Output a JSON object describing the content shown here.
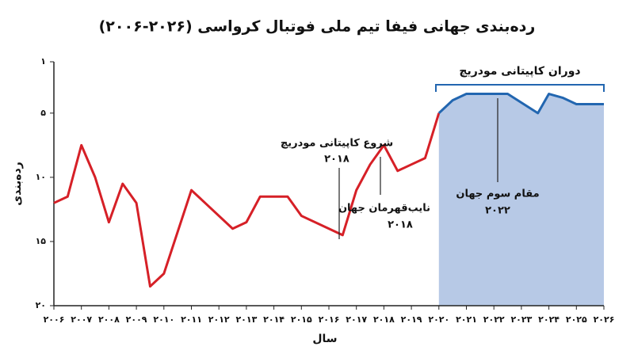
{
  "chart_data": {
    "type": "line",
    "title": "رده‌بندی جهانی فیفا تیم ملی فوتبال کرواسی (۲۰۲۶-۲۰۰۶)",
    "x_label": "سال",
    "y_label": "رده‌بندی",
    "y_inverted": true,
    "xlim": [
      2006,
      2026
    ],
    "xticks": [
      {
        "value": 2006,
        "label": "۲۰۰۶"
      },
      {
        "value": 2007,
        "label": "۲۰۰۷"
      },
      {
        "value": 2008,
        "label": "۲۰۰۸"
      },
      {
        "value": 2009,
        "label": "۲۰۰۹"
      },
      {
        "value": 2010,
        "label": "۲۰۱۰"
      },
      {
        "value": 2011,
        "label": "۲۰۱۱"
      },
      {
        "value": 2012,
        "label": "۲۰۱۲"
      },
      {
        "value": 2013,
        "label": "۲۰۱۳"
      },
      {
        "value": 2014,
        "label": "۲۰۱۴"
      },
      {
        "value": 2015,
        "label": "۲۰۱۵"
      },
      {
        "value": 2016,
        "label": "۲۰۱۶"
      },
      {
        "value": 2017,
        "label": "۲۰۱۷"
      },
      {
        "value": 2018,
        "label": "۲۰۱۸"
      },
      {
        "value": 2019,
        "label": "۲۰۱۹"
      },
      {
        "value": 2020,
        "label": "۲۰۲۰"
      },
      {
        "value": 2021,
        "label": "۲۰۲۱"
      },
      {
        "value": 2022,
        "label": "۲۰۲۲"
      },
      {
        "value": 2023,
        "label": "۲۰۲۳"
      },
      {
        "value": 2024,
        "label": "۲۰۲۴"
      },
      {
        "value": 2025,
        "label": "۲۰۲۵"
      },
      {
        "value": 2026,
        "label": "۲۰۲۶"
      }
    ],
    "ylim": [
      20,
      1
    ],
    "yticks": [
      {
        "value": 1,
        "label": "۱"
      },
      {
        "value": 5,
        "label": "۵"
      },
      {
        "value": 10,
        "label": "۱۰"
      },
      {
        "value": 15,
        "label": "۱۵"
      },
      {
        "value": 20,
        "label": "۲۰"
      }
    ],
    "series": [
      {
        "color": "#d62027",
        "x": [
          2006,
          2006.5,
          2007,
          2007.5,
          2008,
          2008.5,
          2009,
          2009.5,
          2010,
          2011,
          2011.5,
          2012.5,
          2013,
          2013.5,
          2014.5,
          2015,
          2016,
          2016.5,
          2017,
          2017.5,
          2018,
          2018.5,
          2019,
          2019.5,
          2020
        ],
        "values": [
          12,
          11.5,
          7.5,
          10,
          13.5,
          10.5,
          12,
          18.5,
          17.5,
          11,
          12,
          14,
          13.5,
          11.5,
          11.5,
          13,
          14,
          14.5,
          11,
          9,
          7.5,
          9.5,
          9,
          8.5,
          5
        ]
      },
      {
        "color": "#2266b0",
        "area_color": "#b7c9e6",
        "x": [
          2020,
          2020.5,
          2021,
          2022,
          2022.5,
          2023.6,
          2024,
          2024.5,
          2025,
          2026
        ],
        "values": [
          5,
          4,
          3.5,
          3.5,
          3.5,
          5,
          3.5,
          3.8,
          4.3,
          4.3
        ]
      }
    ],
    "annotations": [
      {
        "text": "شروع کاپیتانی مودریچ",
        "year": "۲۰۱۸"
      },
      {
        "text": "نایب‌قهرمان جهان",
        "year": "۲۰۱۸"
      },
      {
        "text": "مقام سوم جهان",
        "year": "۲۰۲۲"
      },
      {
        "text": "دوران کاپیتانی مودریچ"
      }
    ]
  }
}
